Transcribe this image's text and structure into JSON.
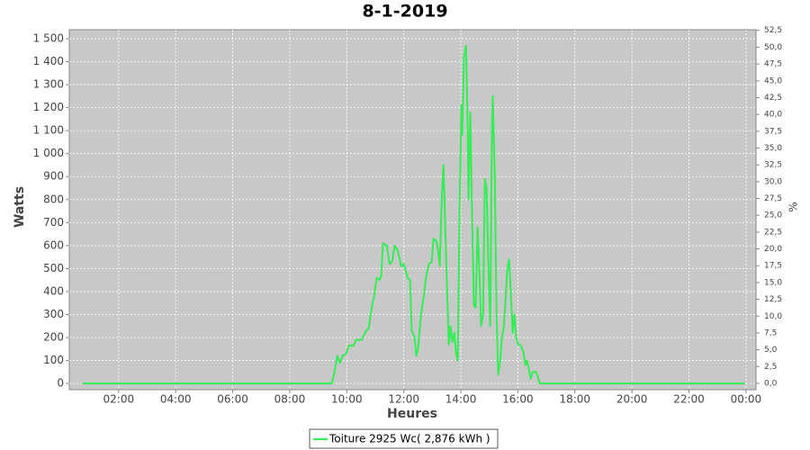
{
  "chart_data": {
    "type": "line",
    "title": "8-1-2019",
    "x_label": "Heures",
    "y_label": "Watts",
    "y2_label": "%",
    "x": [
      0.74,
      9.48,
      9.57,
      9.67,
      9.76,
      9.85,
      9.98,
      10.08,
      10.23,
      10.33,
      10.52,
      10.68,
      10.77,
      10.86,
      10.96,
      11.05,
      11.15,
      11.21,
      11.27,
      11.4,
      11.5,
      11.59,
      11.68,
      11.78,
      11.91,
      12.0,
      12.13,
      12.22,
      12.28,
      12.38,
      12.44,
      12.5,
      12.6,
      12.69,
      12.79,
      12.88,
      12.98,
      13.04,
      13.14,
      13.2,
      13.26,
      13.33,
      13.39,
      13.45,
      13.51,
      13.58,
      13.64,
      13.7,
      13.77,
      13.83,
      13.89,
      13.96,
      14.02,
      14.05,
      14.11,
      14.18,
      14.24,
      14.27,
      14.33,
      14.4,
      14.46,
      14.52,
      14.59,
      14.65,
      14.71,
      14.78,
      14.84,
      14.9,
      14.97,
      15.03,
      15.09,
      15.12,
      15.19,
      15.25,
      15.31,
      15.38,
      15.44,
      15.5,
      15.56,
      15.63,
      15.69,
      15.75,
      15.82,
      15.88,
      15.94,
      16.01,
      16.07,
      16.13,
      16.2,
      16.26,
      16.32,
      16.39,
      16.45,
      16.51,
      16.64,
      16.7,
      16.76,
      23.96
    ],
    "series": [
      {
        "name": "Toiture 2925 Wc( 2,876 kWh )",
        "color": "#33ee55",
        "values": [
          0,
          0,
          50,
          120,
          90,
          120,
          130,
          165,
          165,
          190,
          190,
          230,
          240,
          320,
          380,
          460,
          450,
          470,
          610,
          600,
          520,
          530,
          600,
          580,
          510,
          520,
          460,
          450,
          230,
          200,
          120,
          150,
          300,
          370,
          470,
          520,
          530,
          630,
          620,
          580,
          510,
          800,
          950,
          700,
          440,
          170,
          250,
          180,
          220,
          130,
          100,
          800,
          1210,
          1080,
          1420,
          1470,
          1100,
          800,
          1180,
          700,
          340,
          330,
          680,
          500,
          250,
          300,
          890,
          850,
          500,
          250,
          1100,
          1250,
          900,
          300,
          40,
          100,
          200,
          240,
          350,
          500,
          540,
          400,
          220,
          300,
          200,
          170,
          170,
          160,
          130,
          80,
          100,
          60,
          20,
          50,
          50,
          30,
          0,
          0
        ]
      }
    ],
    "xlim": [
      0.27,
      24.35
    ],
    "xticks": [
      {
        "value": 2,
        "label": "02:00"
      },
      {
        "value": 4,
        "label": "04:00"
      },
      {
        "value": 6,
        "label": "06:00"
      },
      {
        "value": 8,
        "label": "08:00"
      },
      {
        "value": 10,
        "label": "10:00"
      },
      {
        "value": 12,
        "label": "12:00"
      },
      {
        "value": 14,
        "label": "14:00"
      },
      {
        "value": 16,
        "label": "16:00"
      },
      {
        "value": 18,
        "label": "18:00"
      },
      {
        "value": 20,
        "label": "20:00"
      },
      {
        "value": 22,
        "label": "22:00"
      },
      {
        "value": 24,
        "label": "00:00"
      }
    ],
    "ylim": [
      -27,
      1539
    ],
    "yticks": [
      0,
      100,
      200,
      300,
      400,
      500,
      600,
      700,
      800,
      900,
      {
        "value": 1000,
        "label": "1 000"
      },
      {
        "value": 1100,
        "label": "1 100"
      },
      {
        "value": 1200,
        "label": "1 200"
      },
      {
        "value": 1300,
        "label": "1 300"
      },
      {
        "value": 1400,
        "label": "1 400"
      },
      {
        "value": 1500,
        "label": "1 500"
      }
    ],
    "y2lim": [
      -0.94,
      52.6
    ],
    "y2ticks": [
      {
        "value": 0,
        "label": "0,0"
      },
      {
        "value": 2.5,
        "label": "2,5"
      },
      {
        "value": 5,
        "label": "5,0"
      },
      {
        "value": 7.5,
        "label": "7,5"
      },
      {
        "value": 10,
        "label": "10,0"
      },
      {
        "value": 12.5,
        "label": "12,5"
      },
      {
        "value": 15,
        "label": "15,0"
      },
      {
        "value": 17.5,
        "label": "17,5"
      },
      {
        "value": 20,
        "label": "20,0"
      },
      {
        "value": 22.5,
        "label": "22,5"
      },
      {
        "value": 25,
        "label": "25,0"
      },
      {
        "value": 27.5,
        "label": "27,5"
      },
      {
        "value": 30,
        "label": "30,0"
      },
      {
        "value": 32.5,
        "label": "32,5"
      },
      {
        "value": 35,
        "label": "35,0"
      },
      {
        "value": 37.5,
        "label": "37,5"
      },
      {
        "value": 40,
        "label": "40,0"
      },
      {
        "value": 42.5,
        "label": "42,5"
      },
      {
        "value": 45,
        "label": "45,0"
      },
      {
        "value": 47.5,
        "label": "47,5"
      },
      {
        "value": 50,
        "label": "50,0"
      },
      {
        "value": 52.5,
        "label": "52,5"
      }
    ],
    "grid": true,
    "legend": "bottom"
  }
}
